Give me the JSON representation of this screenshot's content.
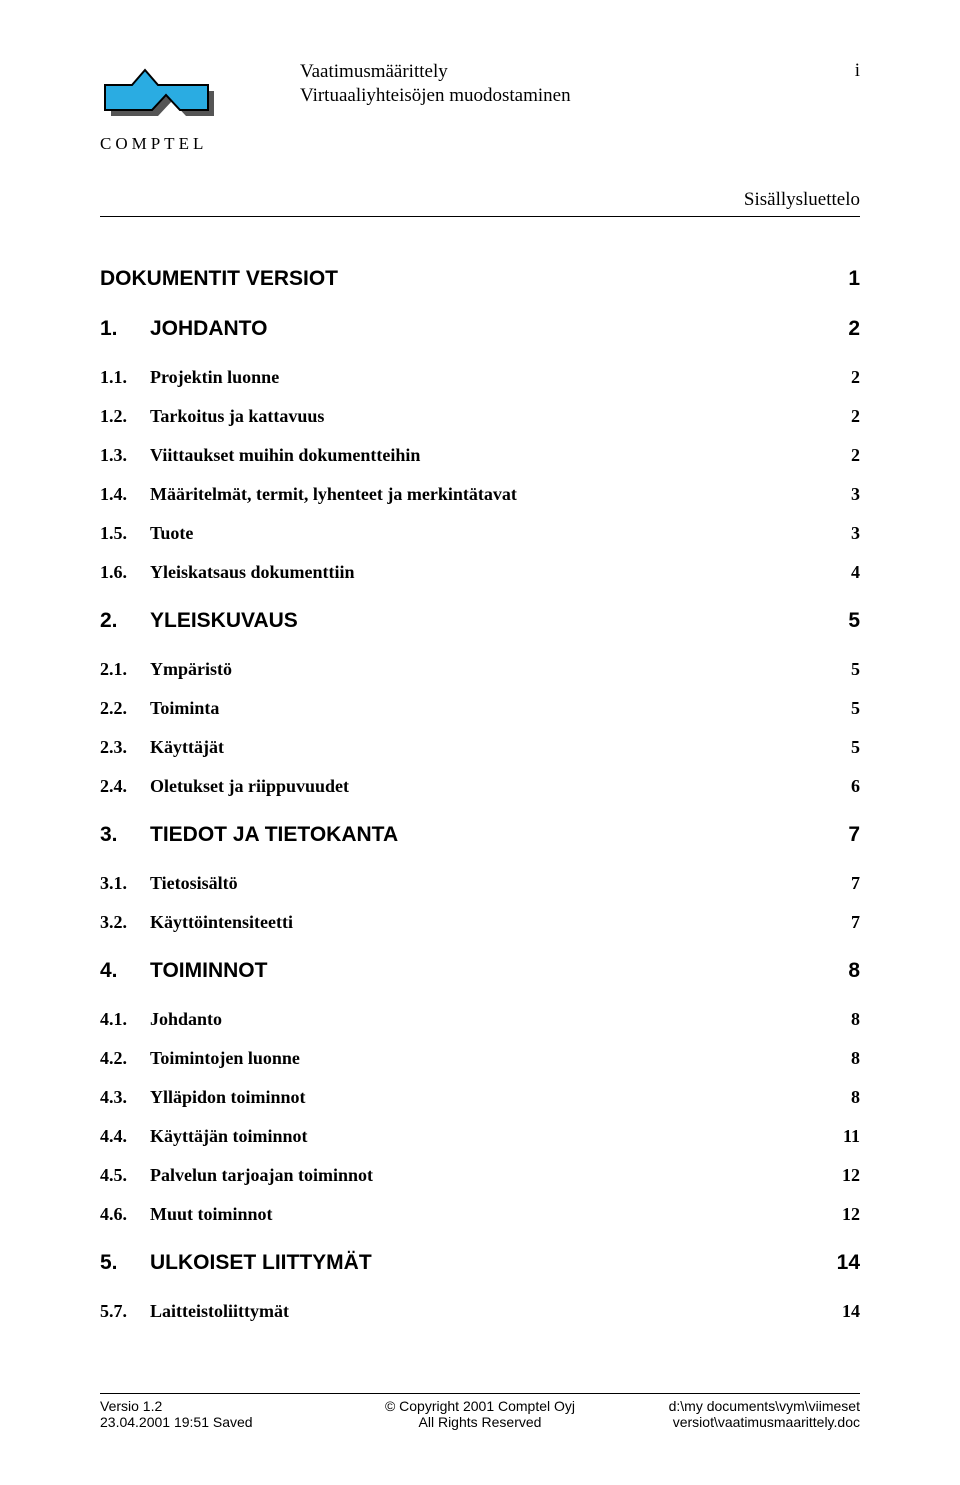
{
  "header": {
    "title_line1": "Vaatimusmäärittely",
    "title_line2": "Virtuaaliyhteisöjen muodostaminen",
    "page_marker": "i",
    "logo_text": "COMPTEL",
    "logo_colors": {
      "fill": "#2aace2",
      "stroke": "#000000",
      "shadow": "#555555"
    },
    "subheader_right": "Sisällysluettelo"
  },
  "toc": [
    {
      "level": 1,
      "num": "",
      "label": "DOKUMENTIT VERSIOT",
      "page": "1"
    },
    {
      "level": 1,
      "num": "1.",
      "label": "JOHDANTO",
      "page": "2"
    },
    {
      "level": 2,
      "num": "1.1.",
      "label": "Projektin luonne",
      "page": "2"
    },
    {
      "level": 2,
      "num": "1.2.",
      "label": "Tarkoitus ja kattavuus",
      "page": "2"
    },
    {
      "level": 2,
      "num": "1.3.",
      "label": "Viittaukset muihin dokumentteihin",
      "page": "2"
    },
    {
      "level": 2,
      "num": "1.4.",
      "label": "Määritelmät, termit, lyhenteet ja merkintätavat",
      "page": "3"
    },
    {
      "level": 2,
      "num": "1.5.",
      "label": "Tuote",
      "page": "3"
    },
    {
      "level": 2,
      "num": "1.6.",
      "label": "Yleiskatsaus dokumenttiin",
      "page": "4"
    },
    {
      "level": 1,
      "num": "2.",
      "label": "YLEISKUVAUS",
      "page": "5"
    },
    {
      "level": 2,
      "num": "2.1.",
      "label": "Ympäristö",
      "page": "5"
    },
    {
      "level": 2,
      "num": "2.2.",
      "label": "Toiminta",
      "page": "5"
    },
    {
      "level": 2,
      "num": "2.3.",
      "label": "Käyttäjät",
      "page": "5"
    },
    {
      "level": 2,
      "num": "2.4.",
      "label": "Oletukset ja riippuvuudet",
      "page": "6"
    },
    {
      "level": 1,
      "num": "3.",
      "label": "TIEDOT JA TIETOKANTA",
      "page": "7"
    },
    {
      "level": 2,
      "num": "3.1.",
      "label": "Tietosisältö",
      "page": "7"
    },
    {
      "level": 2,
      "num": "3.2.",
      "label": "Käyttöintensiteetti",
      "page": "7"
    },
    {
      "level": 1,
      "num": "4.",
      "label": "TOIMINNOT",
      "page": "8"
    },
    {
      "level": 2,
      "num": "4.1.",
      "label": "Johdanto",
      "page": "8"
    },
    {
      "level": 2,
      "num": "4.2.",
      "label": "Toimintojen luonne",
      "page": "8"
    },
    {
      "level": 2,
      "num": "4.3.",
      "label": "Ylläpidon toiminnot",
      "page": "8"
    },
    {
      "level": 2,
      "num": "4.4.",
      "label": "Käyttäjän toiminnot",
      "page": "11"
    },
    {
      "level": 2,
      "num": "4.5.",
      "label": "Palvelun tarjoajan toiminnot",
      "page": "12"
    },
    {
      "level": 2,
      "num": "4.6.",
      "label": "Muut toiminnot",
      "page": "12"
    },
    {
      "level": 1,
      "num": "5.",
      "label": "ULKOISET LIITTYMÄT",
      "page": "14"
    },
    {
      "level": 2,
      "num": "5.7.",
      "label": "Laitteistoliittymät",
      "page": "14"
    }
  ],
  "footer": {
    "left_line1": "Versio 1.2",
    "left_line2": "23.04.2001 19:51 Saved",
    "center_line1": "© Copyright 2001 Comptel Oyj",
    "center_line2": "All Rights Reserved",
    "right_line1": "d:\\my documents\\vym\\viimeset",
    "right_line2": "versiot\\vaatimusmaarittely.doc"
  }
}
